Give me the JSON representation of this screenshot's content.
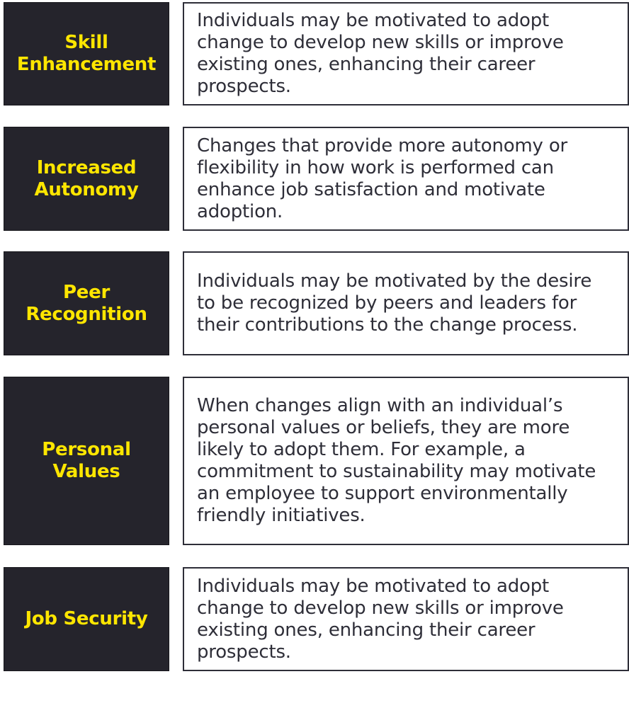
{
  "rows": [
    {
      "label": "Skill\nEnhancement",
      "description": "Individuals may be motivated to adopt\nchange to develop new skills or improve\nexisting ones, enhancing their career\nprospects."
    },
    {
      "label": "Increased\nAutonomy",
      "description": "Changes that provide more autonomy or\nflexibility in how work is performed can\nenhance job satisfaction and motivate\nadoption."
    },
    {
      "label": "Peer\nRecognition",
      "description": "Individuals may be motivated by the desire\nto be recognized by peers and leaders for\ntheir contributions to the change process."
    },
    {
      "label": "Personal\nValues",
      "description": "When changes align with an individual’s\npersonal values or beliefs, they are more\nlikely to adopt them. For example, a\ncommitment to sustainability may motivate\nan employee to support environmentally\nfriendly initiatives."
    },
    {
      "label": "Job Security",
      "description": "Individuals may be motivated to adopt\nchange to develop new skills or improve\nexisting ones, enhancing their career\nprospects."
    }
  ]
}
